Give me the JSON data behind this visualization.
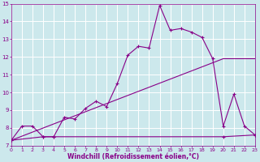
{
  "xlabel": "Windchill (Refroidissement éolien,°C)",
  "xlim": [
    0,
    23
  ],
  "ylim": [
    7,
    15
  ],
  "yticks": [
    7,
    8,
    9,
    10,
    11,
    12,
    13,
    14,
    15
  ],
  "xticks": [
    0,
    1,
    2,
    3,
    4,
    5,
    6,
    7,
    8,
    9,
    10,
    11,
    12,
    13,
    14,
    15,
    16,
    17,
    18,
    19,
    20,
    21,
    22,
    23
  ],
  "bg_color": "#cce8ec",
  "grid_color": "#ffffff",
  "line_color": "#880088",
  "line1_x": [
    0,
    1,
    2,
    3,
    4,
    5,
    6,
    7,
    8,
    9,
    10,
    11,
    12,
    13,
    14,
    15,
    16,
    17,
    18,
    19,
    20,
    21,
    22,
    23
  ],
  "line1_y": [
    7.3,
    8.1,
    8.1,
    7.5,
    7.5,
    8.6,
    8.5,
    9.1,
    9.5,
    9.2,
    10.5,
    12.1,
    12.6,
    12.5,
    14.9,
    13.5,
    13.6,
    13.4,
    13.1,
    11.9,
    8.1,
    9.9,
    8.1,
    7.6
  ],
  "line2_x": [
    0,
    3,
    4,
    20,
    23
  ],
  "line2_y": [
    7.3,
    7.5,
    7.5,
    7.5,
    7.6
  ],
  "line3_x": [
    0,
    20,
    23
  ],
  "line3_y": [
    7.3,
    11.9,
    11.9
  ]
}
